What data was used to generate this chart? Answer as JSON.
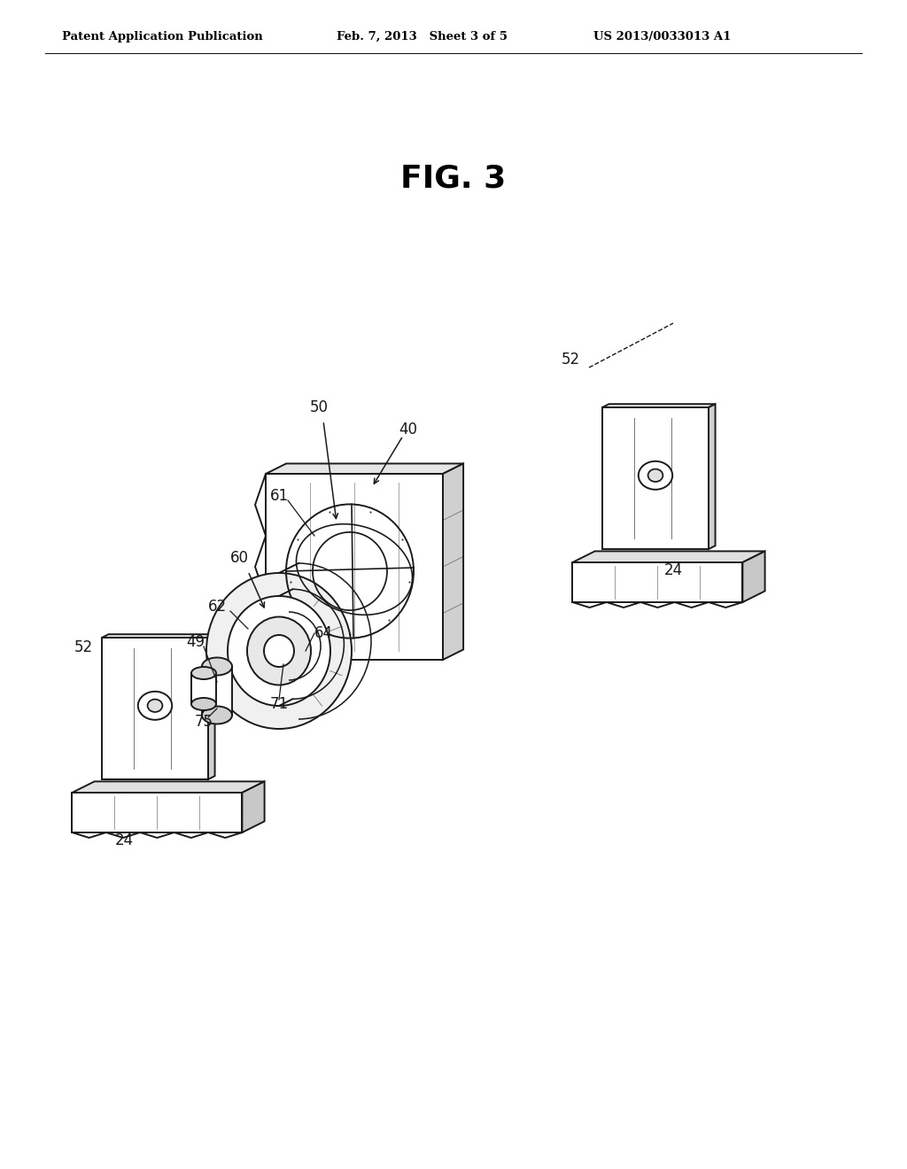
{
  "background_color": "#ffffff",
  "header_left": "Patent Application Publication",
  "header_center": "Feb. 7, 2013   Sheet 3 of 5",
  "header_right": "US 2013/0033013 A1",
  "fig_label": "FIG. 3",
  "line_color": "#1a1a1a",
  "lw": 1.4
}
